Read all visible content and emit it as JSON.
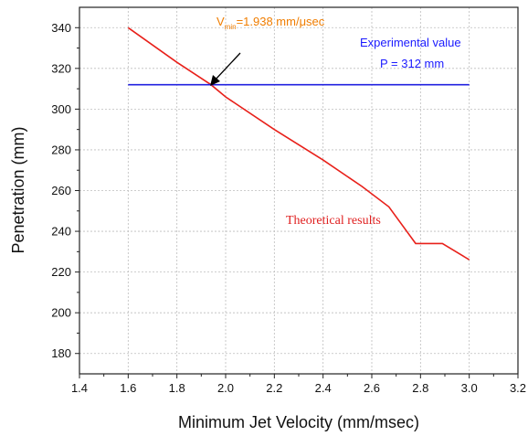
{
  "chart_data": {
    "type": "line",
    "xlabel": "Minimum Jet Velocity (mm/msec)",
    "ylabel": "Penetration (mm)",
    "xlim": [
      1.4,
      3.2
    ],
    "ylim": [
      170,
      350
    ],
    "xticks": [
      "1.4",
      "1.6",
      "1.8",
      "2.0",
      "2.2",
      "2.4",
      "2.6",
      "2.8",
      "3.0",
      "3.2"
    ],
    "yticks": [
      "180",
      "200",
      "220",
      "240",
      "260",
      "280",
      "300",
      "320",
      "340"
    ],
    "grid": true,
    "series": [
      {
        "color": "#e8201a",
        "x": [
          1.6,
          1.8,
          1.94,
          2.0,
          2.2,
          2.4,
          2.56,
          2.67,
          2.78,
          2.89,
          3.0
        ],
        "y": [
          340,
          323,
          312,
          306,
          290,
          275,
          262,
          252,
          234,
          234,
          226
        ]
      },
      {
        "color": "#2020e0",
        "x": [
          1.6,
          3.0
        ],
        "y": [
          312,
          312
        ]
      }
    ],
    "annotations": {
      "vmin_prefix": "V",
      "vmin_sub": "min",
      "vmin_value": "=1.938 mm/μsec",
      "experimental": "Experimental value",
      "experimental_p": "P = 312 mm",
      "theoretical": "Theoretical results"
    },
    "colors": {
      "annotation_vmin": "#f07d00",
      "arrow": "#000000"
    }
  }
}
